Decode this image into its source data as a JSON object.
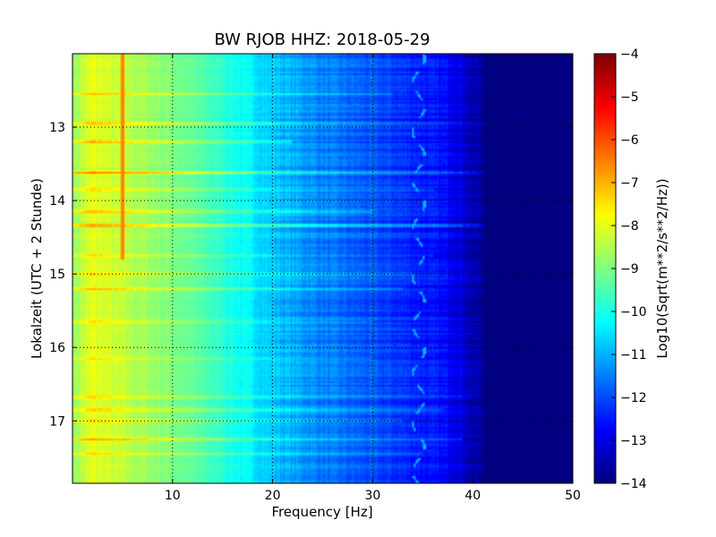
{
  "chart_data": {
    "type": "heatmap",
    "title": "BW RJOB HHZ: 2018-05-29",
    "xlabel": "Frequency [Hz]",
    "ylabel": "Lokalzeit (UTC + 2 Stunde)",
    "xlim": [
      0,
      50
    ],
    "ylim": [
      12.0,
      17.85
    ],
    "y_inverted": true,
    "x_ticks": [
      10,
      20,
      30,
      40,
      50
    ],
    "x_tick_labels": [
      "10",
      "20",
      "30",
      "40",
      "50"
    ],
    "y_ticks": [
      13,
      14,
      15,
      16,
      17
    ],
    "y_tick_labels": [
      "13",
      "14",
      "15",
      "16",
      "17"
    ],
    "grid": true,
    "colormap": "jet",
    "colorbar": {
      "label": "Log10(Sqrt(m**2/s**2/Hz))",
      "range": [
        -14,
        -4
      ],
      "ticks": [
        -4,
        -5,
        -6,
        -7,
        -8,
        -9,
        -10,
        -11,
        -12,
        -13,
        -14
      ],
      "tick_labels": [
        "−4",
        "−5",
        "−6",
        "−7",
        "−8",
        "−9",
        "−10",
        "−11",
        "−12",
        "−13",
        "−14"
      ]
    },
    "spectral_profile": {
      "description_values_log10": true,
      "frequency_hz": [
        0,
        2,
        5,
        10,
        15,
        20,
        25,
        30,
        35,
        38,
        40,
        42,
        50
      ],
      "level": [
        -8.8,
        -8.0,
        -8.4,
        -9.0,
        -9.8,
        -10.8,
        -11.5,
        -12.0,
        -12.5,
        -12.8,
        -13.5,
        -14.0,
        -14.0
      ]
    },
    "features": {
      "line_5hz": {
        "frequency_hz": 5.0,
        "time_range": [
          12.0,
          14.8
        ],
        "level": -6.5
      },
      "wandering_line": {
        "frequency_hz_range": [
          34.0,
          35.2
        ],
        "level": -11.0
      },
      "broadband_events": [
        {
          "time": 12.55,
          "level_boost": 1.0,
          "max_freq_hz": 32
        },
        {
          "time": 12.95,
          "level_boost": 1.5,
          "max_freq_hz": 42
        },
        {
          "time": 13.2,
          "level_boost": 1.6,
          "max_freq_hz": 22
        },
        {
          "time": 13.62,
          "level_boost": 1.8,
          "max_freq_hz": 42
        },
        {
          "time": 13.85,
          "level_boost": 1.0,
          "max_freq_hz": 36
        },
        {
          "time": 14.15,
          "level_boost": 1.3,
          "max_freq_hz": 30
        },
        {
          "time": 14.34,
          "level_boost": 1.8,
          "max_freq_hz": 42
        },
        {
          "time": 14.75,
          "level_boost": 1.0,
          "max_freq_hz": 36
        },
        {
          "time": 15.0,
          "level_boost": 0.9,
          "max_freq_hz": 34
        },
        {
          "time": 15.2,
          "level_boost": 1.2,
          "max_freq_hz": 33
        },
        {
          "time": 15.65,
          "level_boost": 0.8,
          "max_freq_hz": 30
        },
        {
          "time": 16.15,
          "level_boost": 0.8,
          "max_freq_hz": 30
        },
        {
          "time": 16.68,
          "level_boost": 1.0,
          "max_freq_hz": 40
        },
        {
          "time": 16.85,
          "level_boost": 1.1,
          "max_freq_hz": 37
        },
        {
          "time": 17.0,
          "level_boost": 1.0,
          "max_freq_hz": 33
        },
        {
          "time": 17.25,
          "level_boost": 1.5,
          "max_freq_hz": 39
        },
        {
          "time": 17.45,
          "level_boost": 0.8,
          "max_freq_hz": 35
        }
      ]
    }
  }
}
